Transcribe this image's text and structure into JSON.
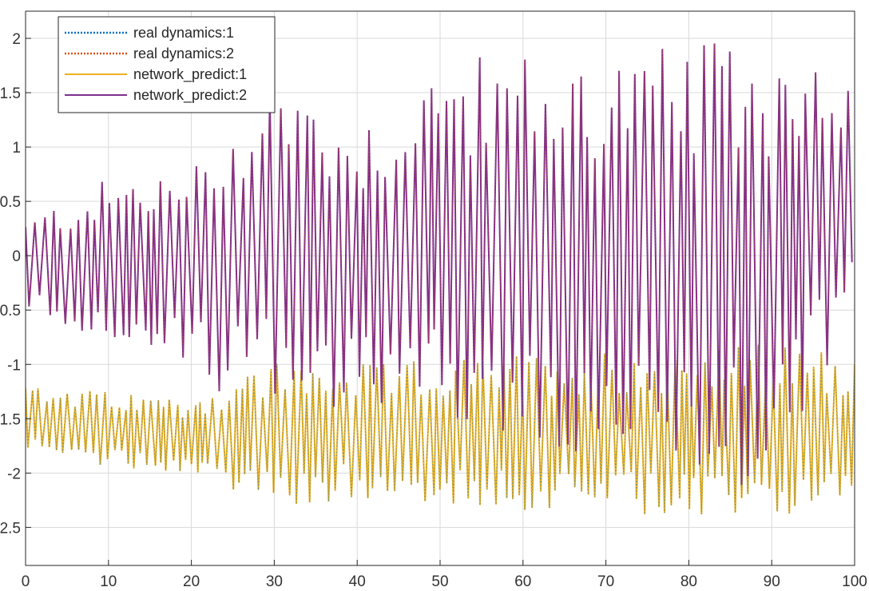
{
  "chart_data": {
    "type": "line",
    "title": "",
    "xlabel": "",
    "ylabel": "",
    "xlim": [
      0,
      100
    ],
    "ylim": [
      -2.85,
      2.25
    ],
    "x_ticks": [
      0,
      10,
      20,
      30,
      40,
      50,
      60,
      70,
      80,
      90,
      100
    ],
    "x_tick_labels": [
      "0",
      "10",
      "20",
      "30",
      "40",
      "50",
      "60",
      "70",
      "80",
      "90",
      "100"
    ],
    "y_ticks": [
      2,
      1.5,
      1,
      0.5,
      0,
      -0.5,
      -1,
      -1.5,
      -2,
      -2.5
    ],
    "y_tick_labels": [
      "2",
      "1.5",
      "1",
      "0.5",
      "0",
      "-0.5",
      "-1",
      "-1.5",
      "-2",
      "-2.5"
    ],
    "grid": true,
    "legend_position": "top-left",
    "series": [
      {
        "name": "real dynamics:1",
        "color": "#0072BD",
        "style": "dotted",
        "band": [
          -2.45,
          -0.78
        ],
        "center": -1.6
      },
      {
        "name": "real dynamics:2",
        "color": "#D95319",
        "style": "dotted",
        "band": [
          -2.15,
          2.02
        ],
        "center": 0.0
      },
      {
        "name": "network_predict:1",
        "color": "#EDB120",
        "style": "solid",
        "band": [
          -2.45,
          -0.78
        ],
        "center": -1.6
      },
      {
        "name": "network_predict:2",
        "color": "#7E2F8E",
        "style": "solid",
        "band": [
          -2.15,
          2.02
        ],
        "center": 0.0
      }
    ],
    "envelope_series_2": [
      {
        "x": 0,
        "min": -0.55,
        "max": 0.35
      },
      {
        "x": 10,
        "min": -0.8,
        "max": 0.72
      },
      {
        "x": 20,
        "min": -1.15,
        "max": 0.82
      },
      {
        "x": 30,
        "min": -1.45,
        "max": 1.75
      },
      {
        "x": 40,
        "min": -1.4,
        "max": 1.25
      },
      {
        "x": 50,
        "min": -1.45,
        "max": 1.8
      },
      {
        "x": 60,
        "min": -1.95,
        "max": 1.9
      },
      {
        "x": 70,
        "min": -2.0,
        "max": 1.9
      },
      {
        "x": 80,
        "min": -2.15,
        "max": 1.95
      },
      {
        "x": 90,
        "min": -2.1,
        "max": 2.02
      },
      {
        "x": 100,
        "min": -0.7,
        "max": 1.95
      }
    ],
    "envelope_series_1": [
      {
        "x": 0,
        "min": -1.85,
        "max": -1.2
      },
      {
        "x": 10,
        "min": -1.95,
        "max": -1.25
      },
      {
        "x": 20,
        "min": -2.0,
        "max": -1.3
      },
      {
        "x": 30,
        "min": -2.35,
        "max": -0.95
      },
      {
        "x": 40,
        "min": -2.25,
        "max": -1.0
      },
      {
        "x": 50,
        "min": -2.3,
        "max": -0.95
      },
      {
        "x": 60,
        "min": -2.35,
        "max": -0.9
      },
      {
        "x": 70,
        "min": -2.4,
        "max": -0.85
      },
      {
        "x": 80,
        "min": -2.45,
        "max": -0.85
      },
      {
        "x": 90,
        "min": -2.42,
        "max": -0.8
      },
      {
        "x": 100,
        "min": -2.35,
        "max": -0.9
      }
    ]
  }
}
